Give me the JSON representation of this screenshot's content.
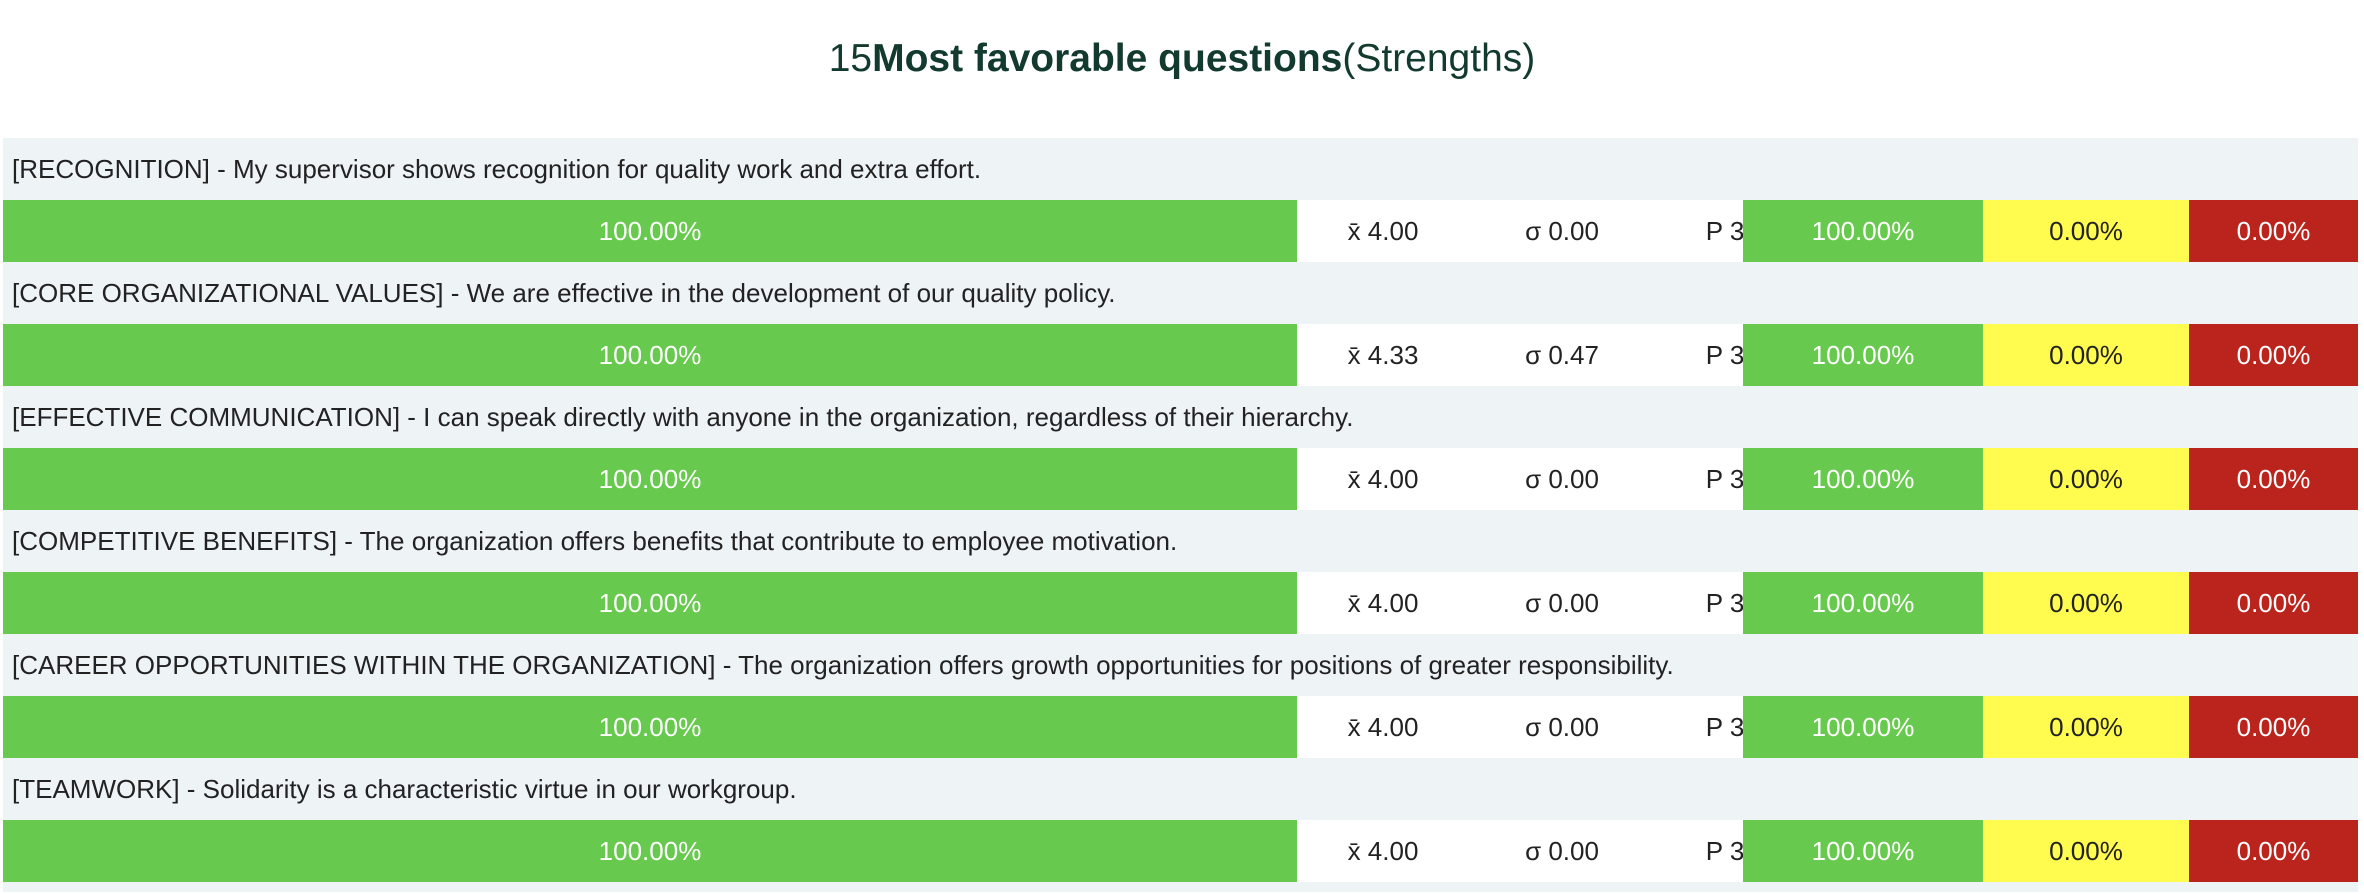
{
  "header": {
    "count": "15",
    "title_bold": "Most favorable questions",
    "title_suffix": "(Strengths)"
  },
  "colors": {
    "favorable": "#67c94d",
    "neutral": "#fffb4f",
    "unfavorable": "#bb241c",
    "row_background": "#eef3f6",
    "title_text": "#123a2f"
  },
  "items": [
    {
      "question": "[RECOGNITION] - My supervisor shows recognition for quality work and extra effort.",
      "bar_value": 1.0,
      "bar_label": "100.00%",
      "mean": "x̄ 4.00",
      "sd": "σ 0.00",
      "p": "P 3",
      "favorable": "100.00%",
      "neutral": "0.00%",
      "unfavorable": "0.00%"
    },
    {
      "question": "[CORE ORGANIZATIONAL VALUES] - We are effective in the development of our quality policy.",
      "bar_value": 1.0,
      "bar_label": "100.00%",
      "mean": "x̄ 4.33",
      "sd": "σ 0.47",
      "p": "P 3",
      "favorable": "100.00%",
      "neutral": "0.00%",
      "unfavorable": "0.00%"
    },
    {
      "question": "[EFFECTIVE COMMUNICATION] - I can speak directly with anyone in the organization, regardless of their hierarchy.",
      "bar_value": 1.0,
      "bar_label": "100.00%",
      "mean": "x̄ 4.00",
      "sd": "σ 0.00",
      "p": "P 3",
      "favorable": "100.00%",
      "neutral": "0.00%",
      "unfavorable": "0.00%"
    },
    {
      "question": "[COMPETITIVE BENEFITS] - The organization offers benefits that contribute to employee motivation.",
      "bar_value": 1.0,
      "bar_label": "100.00%",
      "mean": "x̄ 4.00",
      "sd": "σ 0.00",
      "p": "P 3",
      "favorable": "100.00%",
      "neutral": "0.00%",
      "unfavorable": "0.00%"
    },
    {
      "question": "[CAREER OPPORTUNITIES WITHIN THE ORGANIZATION] - The organization offers growth opportunities for positions of greater responsibility.",
      "bar_value": 1.0,
      "bar_label": "100.00%",
      "mean": "x̄ 4.00",
      "sd": "σ 0.00",
      "p": "P 3",
      "favorable": "100.00%",
      "neutral": "0.00%",
      "unfavorable": "0.00%"
    },
    {
      "question": "[TEAMWORK] - Solidarity is a characteristic virtue in our workgroup.",
      "bar_value": 1.0,
      "bar_label": "100.00%",
      "mean": "x̄ 4.00",
      "sd": "σ 0.00",
      "p": "P 3",
      "favorable": "100.00%",
      "neutral": "0.00%",
      "unfavorable": "0.00%"
    }
  ]
}
